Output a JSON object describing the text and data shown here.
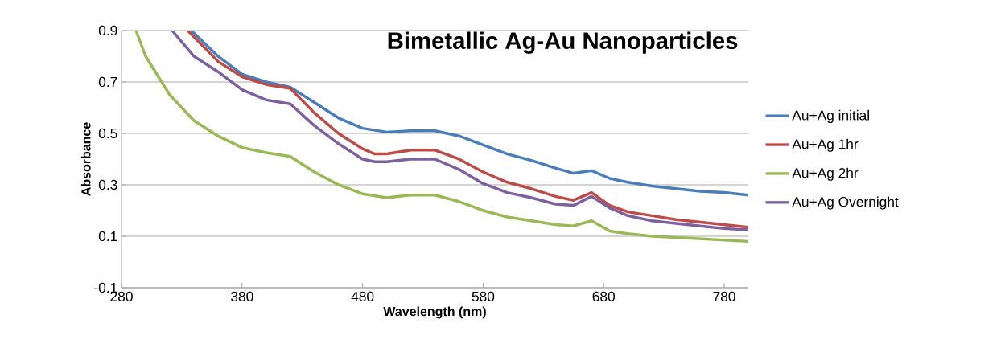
{
  "chart_data": {
    "type": "line",
    "title": "Bimetallic Ag-Au Nanoparticles",
    "xlabel": "Wavelength (nm)",
    "ylabel": "Absorbance",
    "xlim": [
      280,
      800
    ],
    "ylim": [
      -0.1,
      0.9
    ],
    "xticks": [
      280,
      380,
      480,
      580,
      680,
      780
    ],
    "yticks": [
      -0.1,
      0.1,
      0.3,
      0.5,
      0.7,
      0.9
    ],
    "grid": "y",
    "legend": "right",
    "line_style": "solid",
    "series": [
      {
        "name": "Au+Ag  initial",
        "color": "#4a7ebb",
        "x": [
          338,
          360,
          380,
          400,
          420,
          440,
          460,
          480,
          500,
          520,
          540,
          560,
          580,
          600,
          620,
          640,
          655,
          670,
          685,
          700,
          720,
          740,
          760,
          780,
          800
        ],
        "values": [
          0.9,
          0.8,
          0.73,
          0.7,
          0.68,
          0.62,
          0.56,
          0.52,
          0.505,
          0.51,
          0.51,
          0.49,
          0.455,
          0.42,
          0.395,
          0.365,
          0.345,
          0.355,
          0.325,
          0.31,
          0.295,
          0.285,
          0.275,
          0.27,
          0.26
        ]
      },
      {
        "name": "Au+Ag  1hr",
        "color": "#be4b48",
        "x": [
          335,
          360,
          380,
          400,
          420,
          440,
          460,
          480,
          490,
          500,
          520,
          540,
          560,
          580,
          600,
          620,
          640,
          655,
          670,
          685,
          700,
          720,
          740,
          760,
          780,
          800
        ],
        "values": [
          0.9,
          0.78,
          0.72,
          0.69,
          0.675,
          0.58,
          0.5,
          0.44,
          0.42,
          0.42,
          0.435,
          0.435,
          0.4,
          0.35,
          0.31,
          0.285,
          0.255,
          0.24,
          0.27,
          0.22,
          0.195,
          0.18,
          0.165,
          0.155,
          0.145,
          0.135
        ]
      },
      {
        "name": "Au+Ag  2hr",
        "color": "#98b954",
        "x": [
          292,
          300,
          320,
          340,
          360,
          380,
          400,
          420,
          440,
          460,
          480,
          500,
          520,
          540,
          560,
          580,
          600,
          620,
          640,
          655,
          670,
          685,
          700,
          720,
          740,
          760,
          780,
          800
        ],
        "values": [
          0.9,
          0.8,
          0.65,
          0.55,
          0.49,
          0.445,
          0.425,
          0.41,
          0.35,
          0.3,
          0.265,
          0.25,
          0.26,
          0.26,
          0.235,
          0.2,
          0.175,
          0.16,
          0.145,
          0.14,
          0.16,
          0.12,
          0.11,
          0.1,
          0.095,
          0.09,
          0.085,
          0.08
        ]
      },
      {
        "name": "Au+Ag Overnight",
        "color": "#7d60a0",
        "x": [
          322,
          340,
          360,
          380,
          400,
          420,
          440,
          460,
          480,
          490,
          500,
          520,
          540,
          560,
          580,
          600,
          620,
          640,
          655,
          670,
          685,
          700,
          720,
          740,
          760,
          780,
          800
        ],
        "values": [
          0.9,
          0.8,
          0.74,
          0.67,
          0.63,
          0.615,
          0.53,
          0.46,
          0.4,
          0.39,
          0.39,
          0.4,
          0.4,
          0.36,
          0.305,
          0.27,
          0.25,
          0.225,
          0.22,
          0.255,
          0.21,
          0.18,
          0.16,
          0.15,
          0.14,
          0.13,
          0.125
        ]
      }
    ]
  }
}
